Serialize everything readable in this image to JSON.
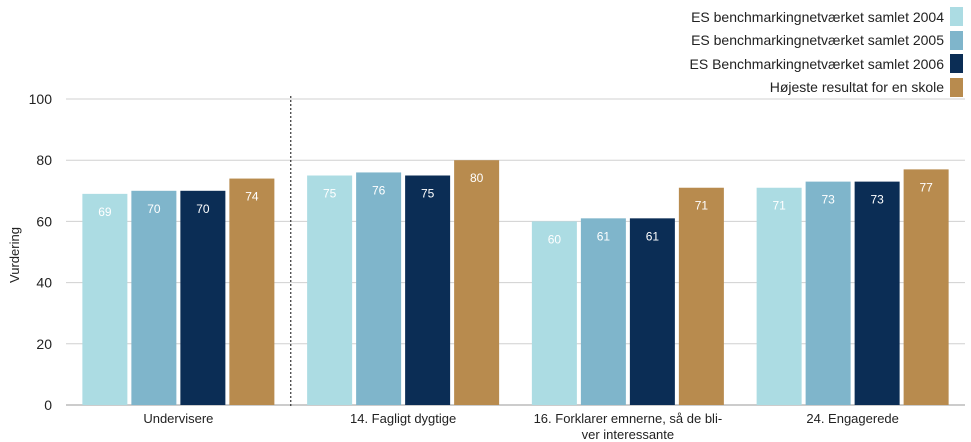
{
  "chart_data": {
    "type": "bar",
    "ylabel": "Vurdering",
    "ylim": [
      0,
      100
    ],
    "yticks": [
      0,
      20,
      40,
      60,
      80,
      100
    ],
    "categories": [
      "Undervisere",
      "14. Fagligt dygtige",
      "16. Forklarer emnerne, så de bli-ver interessante",
      "24. Engagerede"
    ],
    "category_lines": [
      [
        "Undervisere"
      ],
      [
        "14. Fagligt dygtige"
      ],
      [
        "16. Forklarer emnerne, så de bli-",
        "ver interessante"
      ],
      [
        "24. Engagerede"
      ]
    ],
    "series": [
      {
        "name": "ES benchmarkingnetværket samlet 2004",
        "color": "#acdce3",
        "label_color": "#ffffff",
        "values": [
          69,
          75,
          60,
          71
        ]
      },
      {
        "name": "ES benchmarkingnetværket samlet 2005",
        "color": "#7fb5cb",
        "label_color": "#ffffff",
        "values": [
          70,
          76,
          61,
          73
        ]
      },
      {
        "name": "ES Benchmarkingnetværket samlet 2006",
        "color": "#0b2d55",
        "label_color": "#ffffff",
        "values": [
          70,
          75,
          61,
          73
        ]
      },
      {
        "name": "Højeste resultat for en skole",
        "color": "#b88b4e",
        "label_color": "#ffffff",
        "values": [
          74,
          80,
          71,
          77
        ]
      }
    ],
    "separator_after_category": 0,
    "grid": true,
    "legend_position": "top-right"
  }
}
